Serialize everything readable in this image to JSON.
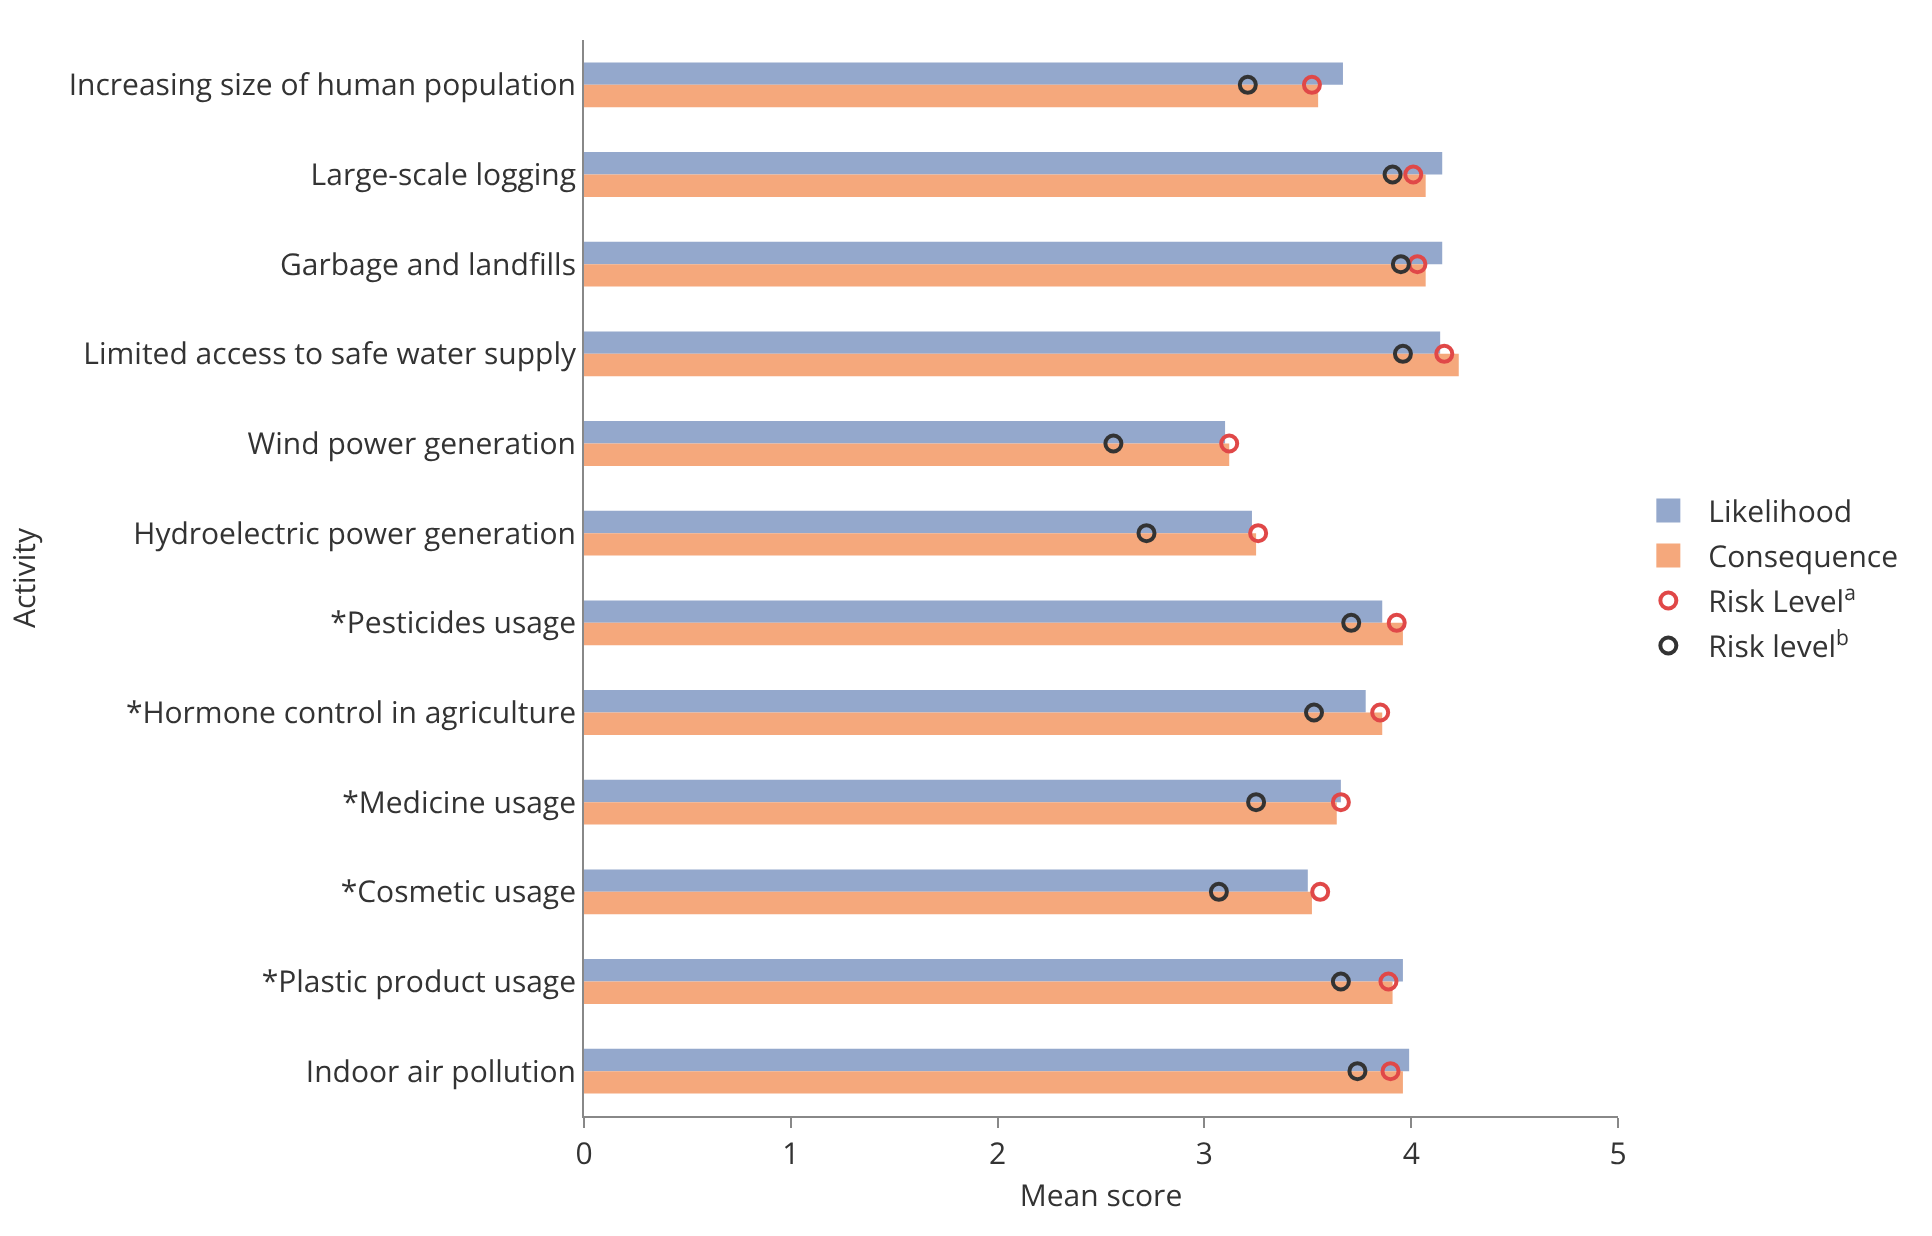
{
  "chart_data": {
    "type": "bar",
    "orientation": "horizontal",
    "xlabel": "Mean score",
    "ylabel": "Activity",
    "categories": [
      "Increasing size of human population",
      "Large-scale logging",
      "Garbage and landfills",
      "Limited access to safe water supply",
      "Wind power generation",
      "Hydroelectric power generation",
      "*Pesticides usage",
      "*Hormone control in agriculture",
      "*Medicine usage",
      "*Cosmetic usage",
      "*Plastic product usage",
      "Indoor air pollution"
    ],
    "series": [
      {
        "name": "Likelihood",
        "color": "#94a8cc",
        "values": [
          3.67,
          4.15,
          4.15,
          4.14,
          3.1,
          3.23,
          3.86,
          3.78,
          3.66,
          3.5,
          3.96,
          3.99
        ]
      },
      {
        "name": "Consequence",
        "color": "#f5a87c",
        "values": [
          3.55,
          4.07,
          4.07,
          4.23,
          3.12,
          3.25,
          3.96,
          3.86,
          3.64,
          3.52,
          3.91,
          3.96
        ]
      },
      {
        "name": "Risk Level$^{a}$",
        "type": "scatter",
        "color": "#e04848",
        "values": [
          3.52,
          4.01,
          4.03,
          4.16,
          3.12,
          3.26,
          3.93,
          3.85,
          3.66,
          3.56,
          3.89,
          3.9
        ]
      },
      {
        "name": "Risk level$^{b}$",
        "type": "scatter",
        "color": "#333333",
        "values": [
          3.21,
          3.91,
          3.95,
          3.96,
          2.56,
          2.72,
          3.71,
          3.53,
          3.25,
          3.07,
          3.66,
          3.74
        ]
      }
    ],
    "xlim": [
      0,
      5
    ],
    "xticks": [
      0,
      1,
      2,
      3,
      4,
      5
    ],
    "grid": false,
    "legend": "right",
    "marker": "circle"
  }
}
